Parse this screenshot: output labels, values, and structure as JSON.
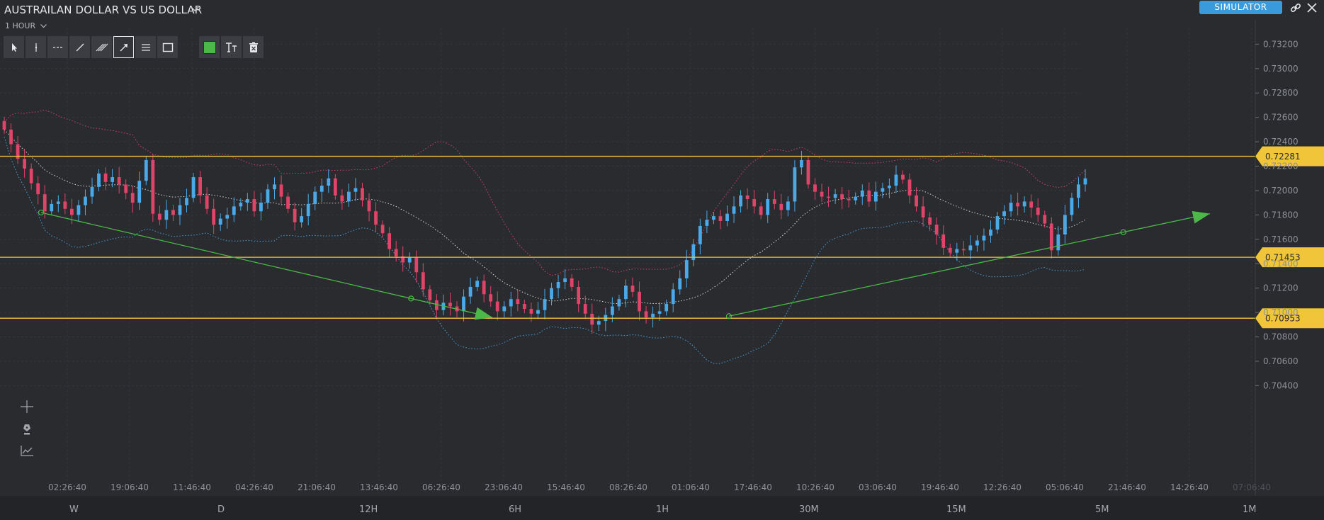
{
  "header": {
    "title": "AUSTRAILAN DOLLAR VS US DOLLAR",
    "interval": "1 HOUR",
    "simulator_label": "SIMULATOR"
  },
  "toolbar": {
    "tools": [
      "pointer",
      "vertical-line",
      "horizontal-dashed-line",
      "trend-line",
      "parallel-channel",
      "arrow-line",
      "fib-lines",
      "rectangle"
    ],
    "active_tool": "arrow-line",
    "actions": [
      "color-picker",
      "text-tool",
      "delete-drawing"
    ],
    "drawing_color": "#4bb848"
  },
  "side_tools": [
    "crosshair-icon",
    "pen-icon",
    "indicator-icon"
  ],
  "chart_data": {
    "type": "candlestick",
    "ylim": [
      0.703,
      0.733
    ],
    "y_ticks": [
      "0.73200",
      "0.73000",
      "0.72800",
      "0.72600",
      "0.72400",
      "0.72200",
      "0.72000",
      "0.71800",
      "0.71600",
      "0.71400",
      "0.71200",
      "0.71000",
      "0.70800",
      "0.70600",
      "0.70400"
    ],
    "x_ticks": [
      "02:26:40",
      "19:06:40",
      "11:46:40",
      "04:26:40",
      "21:06:40",
      "13:46:40",
      "06:26:40",
      "23:06:40",
      "15:46:40",
      "08:26:40",
      "01:06:40",
      "17:46:40",
      "10:26:40",
      "03:06:40",
      "19:46:40",
      "12:26:40",
      "05:06:40",
      "21:46:40",
      "14:26:40",
      "07:06:40"
    ],
    "x_tick_faded": [
      "07:06:40"
    ],
    "horizontal_levels": [
      {
        "value": 0.72281,
        "label": "0.72281"
      },
      {
        "value": 0.71453,
        "label": "0.71453"
      },
      {
        "value": 0.70953,
        "label": "0.70953"
      }
    ],
    "trend_arrows": [
      {
        "from": [
          0,
          0.7182
        ],
        "to": [
          19.5,
          0.7096
        ]
      },
      {
        "from": [
          31.5,
          0.7097
        ],
        "to": [
          53,
          0.7181
        ]
      }
    ],
    "indicators": [
      "bollinger_upper",
      "bollinger_mid",
      "bollinger_lower"
    ],
    "colors": {
      "up": "#4aa9e8",
      "down": "#e04468",
      "level": "#f0c53a",
      "arrow": "#4bb848",
      "bb_upper": "#e04468",
      "bb_mid": "#e6e7ea",
      "bb_lower": "#4aa9e8"
    },
    "closes": [
      0.725,
      0.7238,
      0.7226,
      0.7218,
      0.7206,
      0.7197,
      0.7183,
      0.7189,
      0.7191,
      0.7185,
      0.718,
      0.7188,
      0.7195,
      0.7203,
      0.7214,
      0.7207,
      0.7211,
      0.7205,
      0.7198,
      0.719,
      0.7208,
      0.7225,
      0.7181,
      0.7176,
      0.7184,
      0.718,
      0.7188,
      0.7194,
      0.7211,
      0.7196,
      0.7185,
      0.7172,
      0.7177,
      0.718,
      0.7187,
      0.719,
      0.7193,
      0.7183,
      0.719,
      0.7201,
      0.7205,
      0.7195,
      0.7185,
      0.7174,
      0.7179,
      0.7189,
      0.7199,
      0.7204,
      0.721,
      0.7196,
      0.7191,
      0.7199,
      0.7202,
      0.7192,
      0.7183,
      0.7172,
      0.7165,
      0.7152,
      0.7146,
      0.7141,
      0.7145,
      0.7133,
      0.7119,
      0.711,
      0.7102,
      0.7108,
      0.7105,
      0.7101,
      0.7113,
      0.7121,
      0.7126,
      0.7115,
      0.7109,
      0.7101,
      0.7105,
      0.7111,
      0.7107,
      0.7103,
      0.7099,
      0.7102,
      0.7111,
      0.712,
      0.7125,
      0.7128,
      0.7121,
      0.7107,
      0.7099,
      0.709,
      0.7093,
      0.7098,
      0.7105,
      0.7111,
      0.7122,
      0.7117,
      0.7101,
      0.7096,
      0.7099,
      0.7101,
      0.7107,
      0.7119,
      0.7128,
      0.7143,
      0.7156,
      0.7171,
      0.7176,
      0.7179,
      0.7175,
      0.7181,
      0.7187,
      0.7196,
      0.7193,
      0.7187,
      0.718,
      0.7193,
      0.7189,
      0.7184,
      0.7191,
      0.7219,
      0.7225,
      0.7205,
      0.7199,
      0.7195,
      0.7194,
      0.7197,
      0.7193,
      0.7192,
      0.7195,
      0.72,
      0.7191,
      0.7199,
      0.7202,
      0.7204,
      0.7213,
      0.7209,
      0.7196,
      0.7187,
      0.7178,
      0.7172,
      0.7164,
      0.7153,
      0.7149,
      0.7152,
      0.7151,
      0.7155,
      0.7159,
      0.7163,
      0.7168,
      0.7179,
      0.7183,
      0.719,
      0.7187,
      0.7191,
      0.7186,
      0.718,
      0.7173,
      0.7151,
      0.7164,
      0.718,
      0.7194,
      0.7205,
      0.721
    ]
  },
  "periods": [
    "W",
    "D",
    "12H",
    "6H",
    "1H",
    "30M",
    "15M",
    "5M",
    "1M"
  ]
}
